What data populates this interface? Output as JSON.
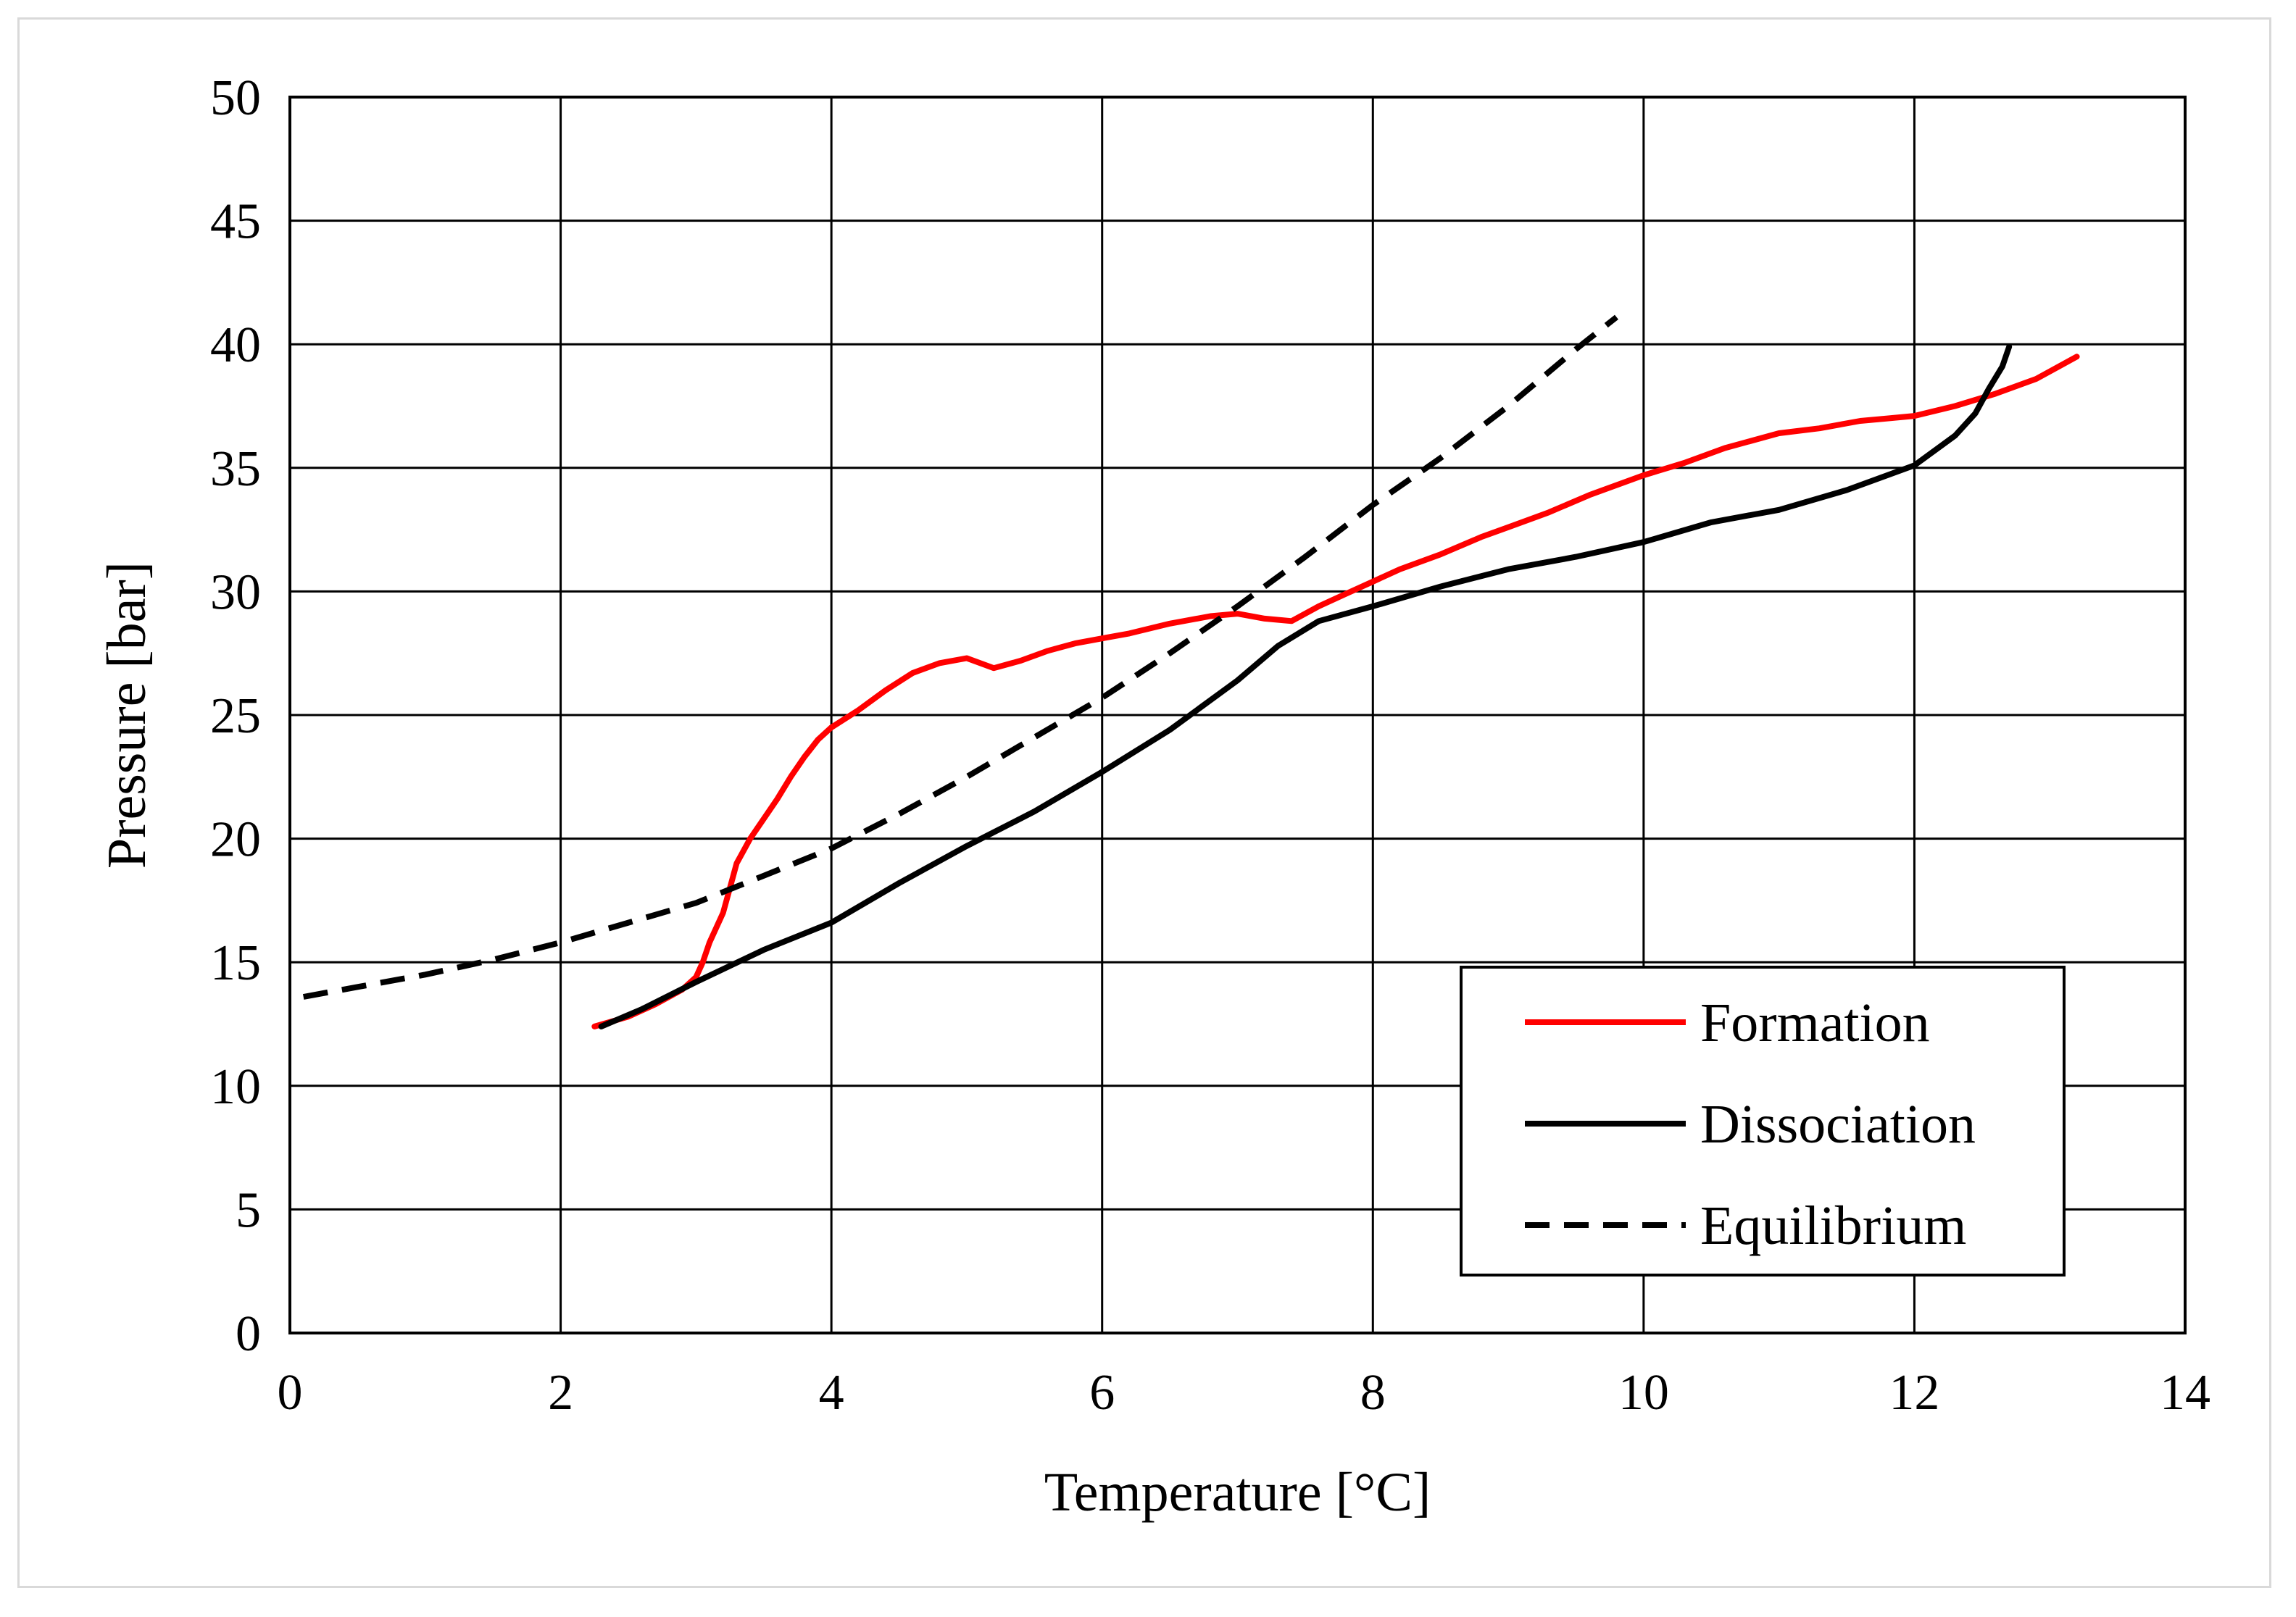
{
  "chart_data": {
    "type": "line",
    "title": "",
    "xlabel": "Temperature [°C]",
    "ylabel": "Pressure [bar]",
    "xlim": [
      0,
      14
    ],
    "ylim": [
      0,
      50
    ],
    "xticks": [
      0,
      2,
      4,
      6,
      8,
      10,
      12,
      14
    ],
    "yticks": [
      0,
      5,
      10,
      15,
      20,
      25,
      30,
      35,
      40,
      45,
      50
    ],
    "grid": true,
    "legend_position": "bottom-right",
    "series": [
      {
        "name": "Formation",
        "color": "#ff0000",
        "style": "solid",
        "x": [
          2.25,
          2.5,
          2.7,
          2.9,
          3.0,
          3.05,
          3.1,
          3.2,
          3.25,
          3.3,
          3.4,
          3.5,
          3.6,
          3.7,
          3.8,
          3.9,
          4.0,
          4.2,
          4.4,
          4.6,
          4.8,
          5.0,
          5.2,
          5.4,
          5.6,
          5.8,
          6.0,
          6.2,
          6.5,
          6.8,
          7.0,
          7.2,
          7.4,
          7.6,
          7.8,
          8.0,
          8.2,
          8.5,
          8.8,
          9.0,
          9.3,
          9.6,
          10.0,
          10.3,
          10.6,
          11.0,
          11.3,
          11.6,
          11.8,
          12.0,
          12.3,
          12.6,
          12.9,
          13.2
        ],
        "values": [
          12.4,
          12.8,
          13.3,
          13.9,
          14.4,
          15.0,
          15.8,
          17.0,
          18.0,
          19.0,
          20.0,
          20.8,
          21.6,
          22.5,
          23.3,
          24.0,
          24.5,
          25.2,
          26.0,
          26.7,
          27.1,
          27.3,
          26.9,
          27.2,
          27.6,
          27.9,
          28.1,
          28.3,
          28.7,
          29.0,
          29.1,
          28.9,
          28.8,
          29.4,
          29.9,
          30.4,
          30.9,
          31.5,
          32.2,
          32.6,
          33.2,
          33.9,
          34.7,
          35.2,
          35.8,
          36.4,
          36.6,
          36.9,
          37.0,
          37.1,
          37.5,
          38.0,
          38.6,
          39.5
        ]
      },
      {
        "name": "Dissociation",
        "color": "#000000",
        "style": "solid",
        "x": [
          2.3,
          2.6,
          3.0,
          3.5,
          4.0,
          4.5,
          5.0,
          5.5,
          6.0,
          6.5,
          7.0,
          7.3,
          7.6,
          8.0,
          8.5,
          9.0,
          9.5,
          10.0,
          10.5,
          11.0,
          11.5,
          12.0,
          12.3,
          12.45,
          12.55,
          12.65,
          12.7
        ],
        "values": [
          12.4,
          13.1,
          14.2,
          15.5,
          16.6,
          18.2,
          19.7,
          21.1,
          22.7,
          24.4,
          26.4,
          27.8,
          28.8,
          29.4,
          30.2,
          30.9,
          31.4,
          32.0,
          32.8,
          33.3,
          34.1,
          35.1,
          36.3,
          37.2,
          38.2,
          39.1,
          39.9
        ]
      },
      {
        "name": "Equilibrium",
        "color": "#000000",
        "style": "dashed",
        "x": [
          0.1,
          0.5,
          1.0,
          1.5,
          2.0,
          2.5,
          3.0,
          3.5,
          4.0,
          4.5,
          5.0,
          5.5,
          6.0,
          6.5,
          7.0,
          7.5,
          8.0,
          8.5,
          9.0,
          9.5,
          9.8
        ],
        "values": [
          13.6,
          14.0,
          14.5,
          15.1,
          15.8,
          16.6,
          17.4,
          18.5,
          19.6,
          21.0,
          22.5,
          24.1,
          25.7,
          27.5,
          29.4,
          31.4,
          33.5,
          35.4,
          37.5,
          39.8,
          41.1
        ]
      }
    ]
  }
}
